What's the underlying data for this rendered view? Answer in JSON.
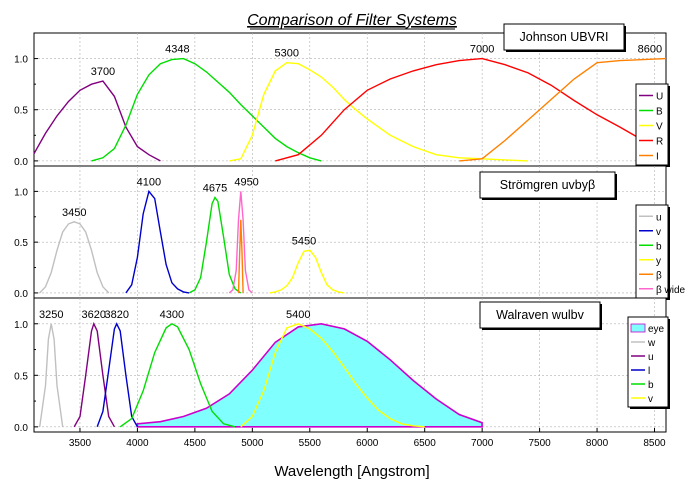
{
  "title": "Comparison of Filter Systems",
  "xlabel": "Wavelength [Angstrom]",
  "x_ticks": [
    3500,
    4000,
    4500,
    5000,
    5500,
    6000,
    6500,
    7000,
    7500,
    8000,
    8500
  ],
  "chart_data": [
    {
      "type": "line",
      "title": "Johnson UBVRI",
      "xlim": [
        3100,
        8600
      ],
      "ylim": [
        -0.05,
        1.25
      ],
      "y_ticks": [
        0.0,
        0.5,
        1.0
      ],
      "legend": "right",
      "peak_labels": [
        {
          "text": "3700",
          "x": 3700,
          "y": 0.78
        },
        {
          "text": "4348",
          "x": 4348,
          "y": 1.0
        },
        {
          "text": "5300",
          "x": 5300,
          "y": 0.96
        },
        {
          "text": "7000",
          "x": 7000,
          "y": 1.0
        },
        {
          "text": "8600",
          "x": 8460,
          "y": 1.0
        }
      ],
      "series": [
        {
          "name": "U",
          "color": "#800080",
          "x": [
            3100,
            3200,
            3300,
            3400,
            3500,
            3600,
            3700,
            3800,
            3900,
            4000,
            4100,
            4200
          ],
          "y": [
            0.07,
            0.27,
            0.44,
            0.58,
            0.69,
            0.75,
            0.78,
            0.63,
            0.33,
            0.14,
            0.06,
            0.0
          ]
        },
        {
          "name": "B",
          "color": "#00dd00",
          "x": [
            3600,
            3700,
            3800,
            3900,
            4000,
            4100,
            4200,
            4300,
            4400,
            4500,
            4600,
            4700,
            4800,
            4900,
            5000,
            5100,
            5200,
            5300,
            5400,
            5500,
            5600
          ],
          "y": [
            0.0,
            0.03,
            0.12,
            0.35,
            0.65,
            0.84,
            0.95,
            0.99,
            1.0,
            0.95,
            0.87,
            0.77,
            0.67,
            0.55,
            0.44,
            0.33,
            0.22,
            0.14,
            0.08,
            0.03,
            0.0
          ]
        },
        {
          "name": "V",
          "color": "#ffff00",
          "x": [
            4800,
            4900,
            5000,
            5100,
            5200,
            5300,
            5400,
            5500,
            5600,
            5700,
            5800,
            5900,
            6000,
            6200,
            6400,
            6600,
            6800,
            7000,
            7200,
            7400
          ],
          "y": [
            0.0,
            0.02,
            0.25,
            0.65,
            0.88,
            0.96,
            0.95,
            0.89,
            0.82,
            0.72,
            0.6,
            0.5,
            0.41,
            0.25,
            0.14,
            0.06,
            0.03,
            0.02,
            0.01,
            0.0
          ]
        },
        {
          "name": "R",
          "color": "#ff0000",
          "x": [
            5200,
            5400,
            5600,
            5800,
            6000,
            6200,
            6400,
            6600,
            6800,
            7000,
            7200,
            7400,
            7600,
            7800,
            8000,
            8200,
            8400,
            8600
          ],
          "y": [
            0.0,
            0.06,
            0.25,
            0.5,
            0.69,
            0.8,
            0.88,
            0.94,
            0.98,
            1.0,
            0.94,
            0.86,
            0.74,
            0.59,
            0.45,
            0.33,
            0.2,
            0.1
          ]
        },
        {
          "name": "I",
          "color": "#ff8000",
          "x": [
            6800,
            7000,
            7200,
            7400,
            7600,
            7800,
            8000,
            8200,
            8400,
            8600
          ],
          "y": [
            0.0,
            0.02,
            0.2,
            0.4,
            0.6,
            0.8,
            0.96,
            0.98,
            0.99,
            1.0
          ]
        }
      ]
    },
    {
      "type": "line",
      "title": "Strömgren uvbyβ",
      "xlim": [
        3100,
        8600
      ],
      "ylim": [
        -0.05,
        1.25
      ],
      "y_ticks": [
        0.0,
        0.5,
        1.0
      ],
      "legend": "right",
      "peak_labels": [
        {
          "text": "3450",
          "x": 3450,
          "y": 0.7
        },
        {
          "text": "4100",
          "x": 4100,
          "y": 1.0
        },
        {
          "text": "4675",
          "x": 4675,
          "y": 0.94
        },
        {
          "text": "4950",
          "x": 4950,
          "y": 1.0
        },
        {
          "text": "5450",
          "x": 5450,
          "y": 0.42
        }
      ],
      "series": [
        {
          "name": "u",
          "color": "#c0c0c0",
          "x": [
            3150,
            3200,
            3250,
            3300,
            3350,
            3400,
            3450,
            3500,
            3550,
            3600,
            3650,
            3700,
            3750
          ],
          "y": [
            0.0,
            0.06,
            0.2,
            0.42,
            0.6,
            0.68,
            0.7,
            0.68,
            0.6,
            0.42,
            0.2,
            0.06,
            0.0
          ]
        },
        {
          "name": "v",
          "color": "#0000cc",
          "x": [
            3900,
            3950,
            4000,
            4050,
            4100,
            4150,
            4200,
            4250,
            4300,
            4350,
            4400,
            4450
          ],
          "y": [
            0.0,
            0.08,
            0.35,
            0.78,
            1.0,
            0.93,
            0.6,
            0.28,
            0.1,
            0.04,
            0.01,
            0.0
          ]
        },
        {
          "name": "b",
          "color": "#00dd00",
          "x": [
            4450,
            4500,
            4550,
            4600,
            4650,
            4675,
            4700,
            4750,
            4800,
            4850,
            4900
          ],
          "y": [
            0.0,
            0.03,
            0.15,
            0.5,
            0.88,
            0.94,
            0.9,
            0.55,
            0.18,
            0.04,
            0.0
          ]
        },
        {
          "name": "y",
          "color": "#ffff00",
          "x": [
            5150,
            5200,
            5250,
            5300,
            5350,
            5400,
            5450,
            5500,
            5550,
            5600,
            5650,
            5700,
            5750,
            5800
          ],
          "y": [
            0.0,
            0.01,
            0.03,
            0.07,
            0.15,
            0.3,
            0.41,
            0.42,
            0.35,
            0.2,
            0.08,
            0.03,
            0.01,
            0.0
          ]
        },
        {
          "name": "β",
          "color": "#ff8000",
          "x": [
            4880,
            4890,
            4900,
            4910,
            4920
          ],
          "y": [
            0.0,
            0.4,
            0.72,
            0.4,
            0.0
          ]
        },
        {
          "name": "β wide",
          "color": "#ff66cc",
          "x": [
            4800,
            4830,
            4860,
            4880,
            4900,
            4920,
            4940,
            4970,
            5000
          ],
          "y": [
            0.0,
            0.03,
            0.22,
            0.72,
            1.0,
            0.72,
            0.22,
            0.03,
            0.0
          ]
        }
      ]
    },
    {
      "type": "line",
      "title": "Walraven wulbv",
      "xlim": [
        3100,
        8600
      ],
      "ylim": [
        -0.05,
        1.25
      ],
      "y_ticks": [
        0.0,
        0.5,
        1.0
      ],
      "legend": "right",
      "peak_labels": [
        {
          "text": "3250",
          "x": 3250,
          "y": 1.0
        },
        {
          "text": "3620",
          "x": 3620,
          "y": 1.0
        },
        {
          "text": "3820",
          "x": 3820,
          "y": 1.0
        },
        {
          "text": "4300",
          "x": 4300,
          "y": 1.0
        },
        {
          "text": "5400",
          "x": 5400,
          "y": 1.0
        }
      ],
      "series": [
        {
          "name": "eye",
          "color": "#80ffff",
          "stroke": "#cc00cc",
          "fill": true,
          "x": [
            4000,
            4000,
            4200,
            4400,
            4600,
            4800,
            5000,
            5200,
            5400,
            5600,
            5800,
            6000,
            6200,
            6400,
            6600,
            6800,
            7000,
            7000
          ],
          "y": [
            0.0,
            0.03,
            0.05,
            0.1,
            0.18,
            0.32,
            0.55,
            0.82,
            0.97,
            1.0,
            0.95,
            0.83,
            0.65,
            0.45,
            0.27,
            0.12,
            0.04,
            0.0
          ]
        },
        {
          "name": "w",
          "color": "#c0c0c0",
          "x": [
            3150,
            3200,
            3225,
            3250,
            3275,
            3300,
            3350
          ],
          "y": [
            0.0,
            0.4,
            0.85,
            1.0,
            0.85,
            0.4,
            0.0
          ]
        },
        {
          "name": "u",
          "color": "#800080",
          "x": [
            3450,
            3500,
            3550,
            3600,
            3620,
            3650,
            3700,
            3750,
            3800
          ],
          "y": [
            0.0,
            0.1,
            0.5,
            0.93,
            1.0,
            0.93,
            0.5,
            0.1,
            0.0
          ]
        },
        {
          "name": "l",
          "color": "#0000cc",
          "x": [
            3650,
            3700,
            3750,
            3800,
            3820,
            3850,
            3900,
            3950,
            4000
          ],
          "y": [
            0.0,
            0.15,
            0.55,
            0.95,
            1.0,
            0.93,
            0.5,
            0.1,
            0.0
          ]
        },
        {
          "name": "b",
          "color": "#00dd00",
          "x": [
            3850,
            3950,
            4050,
            4150,
            4250,
            4300,
            4350,
            4450,
            4550,
            4650,
            4750,
            4850
          ],
          "y": [
            0.0,
            0.08,
            0.35,
            0.72,
            0.96,
            1.0,
            0.97,
            0.75,
            0.42,
            0.15,
            0.03,
            0.0
          ]
        },
        {
          "name": "v",
          "color": "#ffff00",
          "x": [
            4900,
            5000,
            5100,
            5200,
            5300,
            5400,
            5500,
            5600,
            5700,
            5800,
            5900,
            6000,
            6100,
            6200,
            6300,
            6400,
            6500
          ],
          "y": [
            0.0,
            0.1,
            0.35,
            0.72,
            0.96,
            1.0,
            0.95,
            0.86,
            0.73,
            0.58,
            0.42,
            0.28,
            0.16,
            0.08,
            0.03,
            0.01,
            0.0
          ]
        }
      ]
    }
  ]
}
